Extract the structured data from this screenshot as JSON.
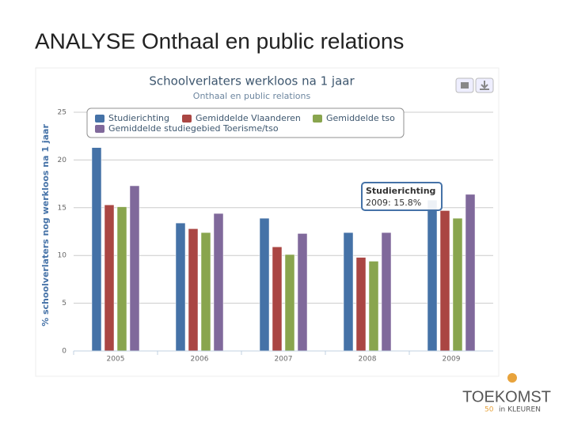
{
  "slide_title": "ANALYSE  Onthaal en public relations",
  "logo": {
    "name": "TOEKOMST",
    "tagline": "in KLEUREN",
    "number": "50"
  },
  "chart_data": {
    "type": "bar",
    "title": "Schoolverlaters werkloos na 1 jaar",
    "subtitle": "Onthaal en public relations",
    "y_label": "% schoolverlaters nog werkloos na 1 jaar",
    "categories": [
      "2005",
      "2006",
      "2007",
      "2008",
      "2009"
    ],
    "series": [
      {
        "name": "Studierichting",
        "color": "#4572a7",
        "values": [
          21.3,
          13.4,
          13.9,
          12.4,
          15.8
        ]
      },
      {
        "name": "Gemiddelde Vlaanderen",
        "color": "#aa4643",
        "values": [
          15.3,
          12.8,
          10.9,
          9.8,
          14.7
        ]
      },
      {
        "name": "Gemiddelde tso",
        "color": "#89a54e",
        "values": [
          15.1,
          12.4,
          10.1,
          9.4,
          13.9
        ]
      },
      {
        "name": "Gemiddelde studiegebied Toerisme/tso",
        "color": "#80699b",
        "values": [
          17.3,
          14.4,
          12.3,
          12.4,
          16.4
        ]
      }
    ],
    "ylim": [
      0,
      25
    ],
    "yticks": [
      0,
      5,
      10,
      15,
      20,
      25
    ],
    "grid": true,
    "tooltip": {
      "title": "Studierichting",
      "text": "2009: 15.8%"
    }
  }
}
